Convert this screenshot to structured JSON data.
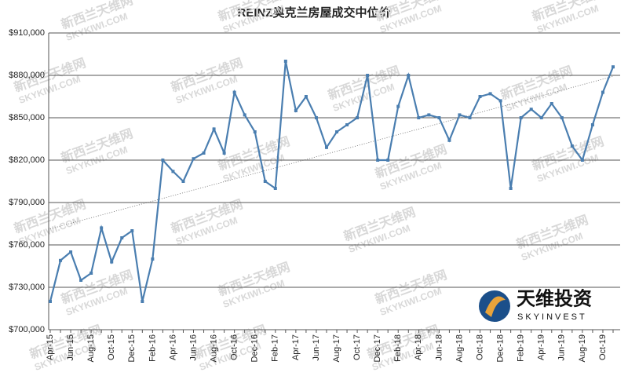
{
  "chart_data": {
    "type": "line",
    "title": "REINZ奥克兰房屋成交中位价",
    "categories": [
      "Apr-15",
      null,
      "Jun-15",
      null,
      "Aug-15",
      null,
      "Oct-15",
      null,
      "Dec-15",
      null,
      "Feb-16",
      null,
      "Apr-16",
      null,
      "Jun-16",
      null,
      "Aug-16",
      null,
      "Oct-16",
      null,
      "Dec-16",
      null,
      "Feb-17",
      null,
      "Apr-17",
      null,
      "Jun-17",
      null,
      "Aug-17",
      null,
      "Oct-17",
      null,
      "Dec-17",
      null,
      "Feb-18",
      null,
      "Apr-18",
      null,
      "Jun-18",
      null,
      "Aug-18",
      null,
      "Oct-18",
      null,
      "Dec-18",
      null,
      "Feb-19",
      null,
      "Apr-19",
      null,
      "Jun-19",
      null,
      "Aug-19",
      null,
      "Oct-19",
      null
    ],
    "series": [
      {
        "color": "#4a7eb0",
        "values": [
          720000,
          749000,
          755000,
          735000,
          740000,
          772000,
          748000,
          765000,
          770000,
          720000,
          750000,
          820000,
          812000,
          805000,
          821000,
          825000,
          842000,
          825000,
          868000,
          852000,
          840000,
          805000,
          800000,
          890000,
          855000,
          865000,
          850000,
          829000,
          840000,
          845000,
          850000,
          880000,
          820000,
          820000,
          858000,
          880000,
          850000,
          852000,
          850000,
          834000,
          852000,
          850000,
          865000,
          867000,
          862000,
          800000,
          850000,
          856000,
          850000,
          860000,
          850000,
          830000,
          820000,
          845000,
          868000,
          886000
        ]
      }
    ],
    "ylim": [
      700000,
      910000
    ],
    "yticks": [
      {
        "value": 700000,
        "label": "$700,000"
      },
      {
        "value": 730000,
        "label": "$730,000"
      },
      {
        "value": 760000,
        "label": "$760,000"
      },
      {
        "value": 790000,
        "label": "$790,000"
      },
      {
        "value": 820000,
        "label": "$820,000"
      },
      {
        "value": 850000,
        "label": "$850,000"
      },
      {
        "value": 880000,
        "label": "$880,000"
      },
      {
        "value": 910000,
        "label": "$910,000"
      }
    ],
    "grid": true,
    "trendline": true
  },
  "logo": {
    "name": "天维投资",
    "sub": "SKYINVEST"
  },
  "watermark": {
    "name": "新西兰天维网",
    "site": "SKYKIWI.COM"
  }
}
